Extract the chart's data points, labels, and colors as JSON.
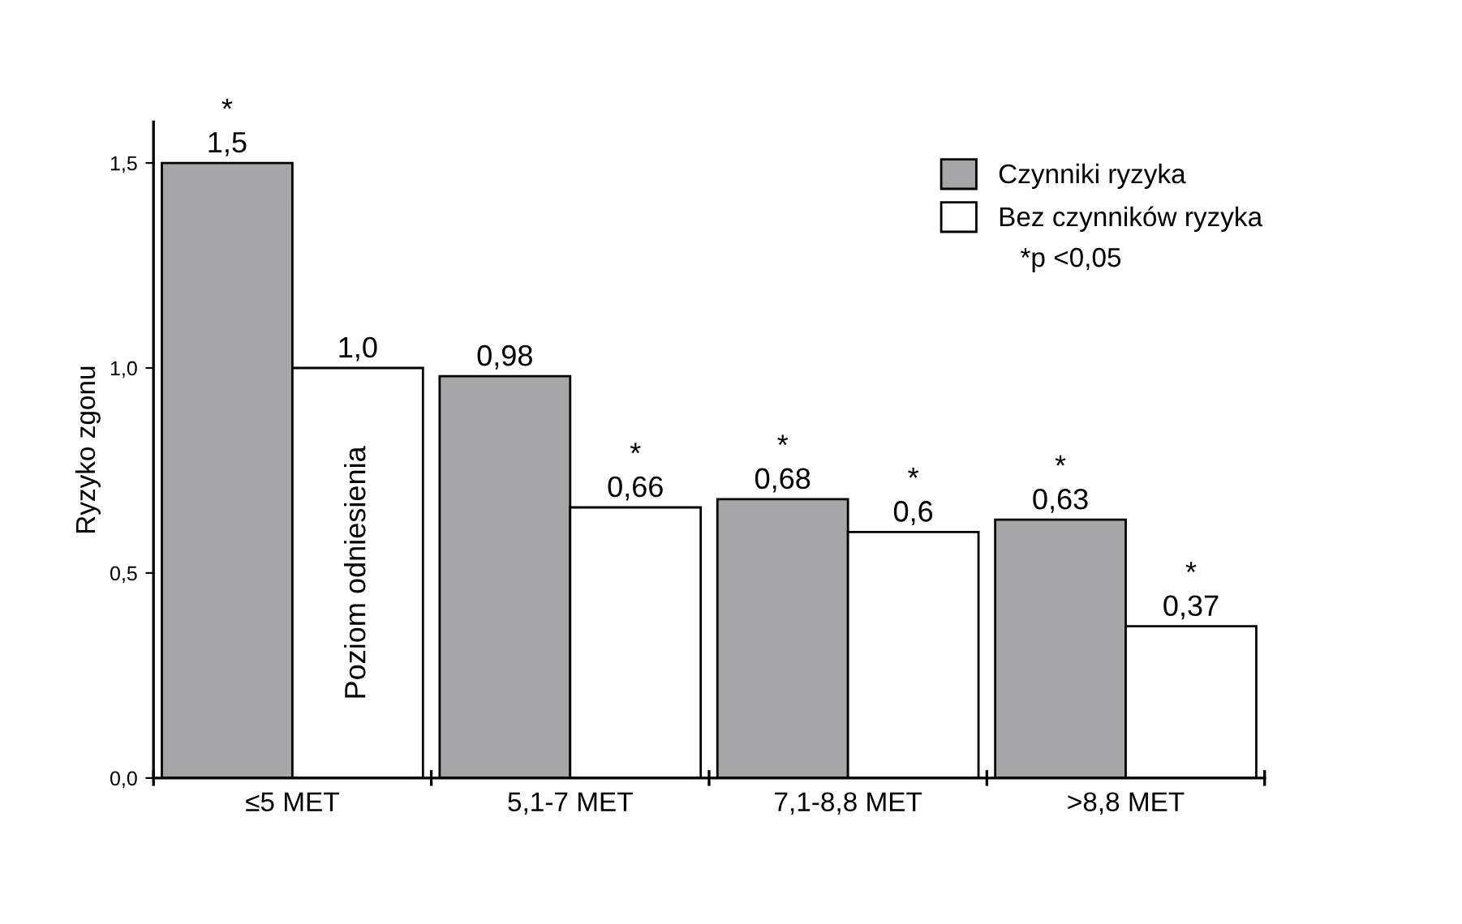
{
  "chart_data": {
    "type": "bar",
    "ylabel": "Ryzyko zgonu",
    "categories": [
      "≤5 MET",
      "5,1-7 MET",
      "7,1-8,8 MET",
      ">8,8 MET"
    ],
    "series": [
      {
        "name": "Czynniki ryzyka",
        "color": "#a6a6a8",
        "values": [
          1.5,
          0.98,
          0.68,
          0.63
        ],
        "value_labels": [
          "*\n1,5",
          "0,98",
          "*\n0,68",
          "*\n0,63"
        ]
      },
      {
        "name": "Bez czynników ryzyka",
        "color": "#ffffff",
        "values": [
          1.0,
          0.66,
          0.6,
          0.37
        ],
        "value_labels": [
          "1,0",
          "*\n0,66",
          "*\n0,6",
          "*\n0,37"
        ]
      }
    ],
    "ylim": [
      0,
      1.6
    ],
    "yticks": [
      {
        "value": 0,
        "label": "0,0"
      },
      {
        "value": 0.5,
        "label": "0,5"
      },
      {
        "value": 1.0,
        "label": "1,0"
      },
      {
        "value": 1.5,
        "label": "1,5"
      }
    ],
    "annotations": [
      {
        "text": "Poziom odniesienia",
        "x": "≤5 MET",
        "y": 0.5
      },
      "*p <0,05"
    ],
    "legend": "top right",
    "grid": false
  }
}
